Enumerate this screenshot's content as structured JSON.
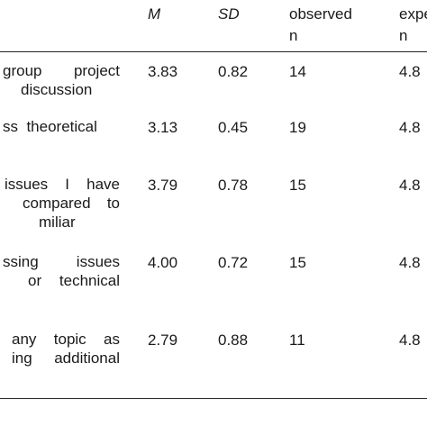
{
  "table": {
    "columns": {
      "m": "M",
      "sd": "SD",
      "observed_line1": "observed",
      "observed_line2": "n",
      "expected_line1": "expe",
      "expected_line2": "n"
    },
    "rows": [
      {
        "item_lines": [
          "group project",
          "discussion"
        ],
        "m": "3.83",
        "sd": "0.82",
        "observed": "14",
        "expected": "4.8"
      },
      {
        "item_lines": [
          "ss  theoretical"
        ],
        "m": "3.13",
        "sd": "0.45",
        "observed": "19",
        "expected": "4.8"
      },
      {
        "item_lines": [
          "issues I have",
          "compared to",
          "miliar"
        ],
        "m": "3.79",
        "sd": "0.78",
        "observed": "15",
        "expected": "4.8"
      },
      {
        "item_lines": [
          "ssing   issues",
          "or   technical"
        ],
        "m": "4.00",
        "sd": "0.72",
        "observed": "15",
        "expected": "4.8"
      },
      {
        "item_lines": [
          "any topic as",
          "ing  additional"
        ],
        "m": "2.79",
        "sd": "0.88",
        "observed": "11",
        "expected": "4.8"
      }
    ]
  }
}
